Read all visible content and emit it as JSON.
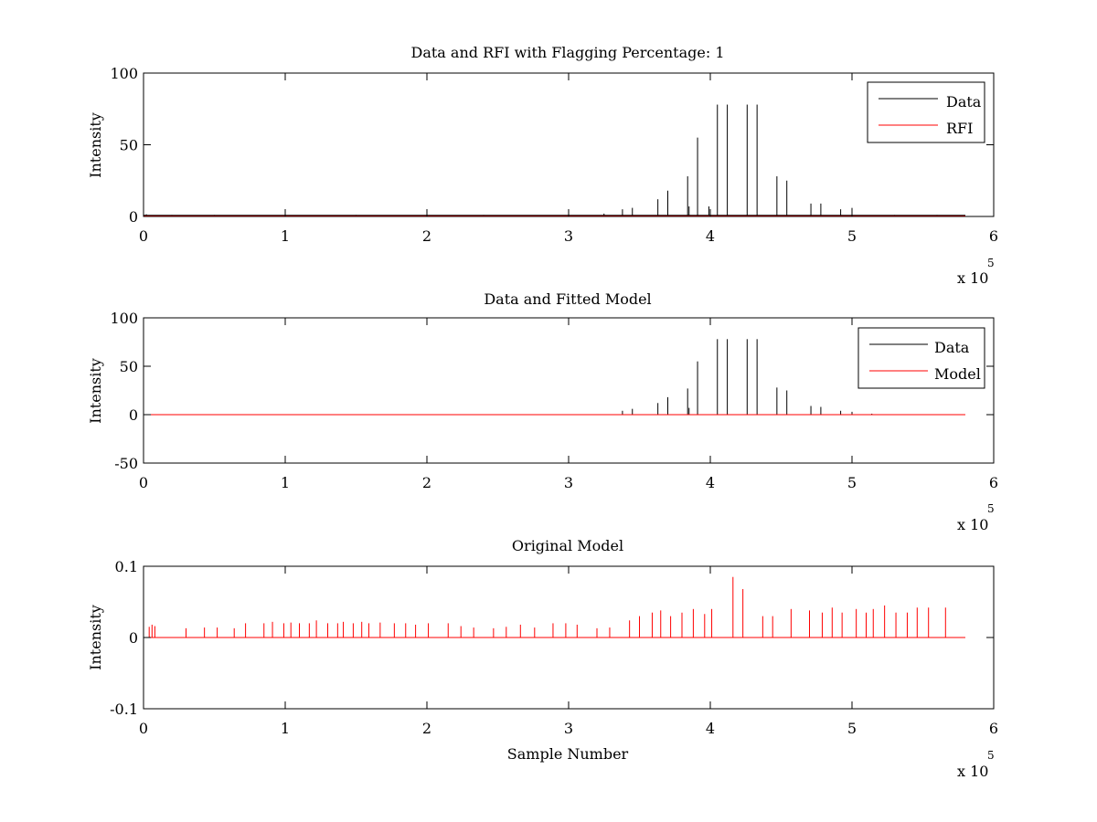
{
  "chart_data": [
    {
      "type": "line",
      "title": "Data and RFI with Flagging Percentage: 1",
      "xlabel": "",
      "ylabel": "Intensity",
      "xlim": [
        0,
        6
      ],
      "ylim": [
        0,
        100
      ],
      "x_ticks": [
        "0",
        "1",
        "2",
        "3",
        "4",
        "5",
        "6"
      ],
      "y_ticks": [
        "0",
        "50",
        "100"
      ],
      "x_multiplier": "x 10",
      "x_exponent": "5",
      "legend": "top-right",
      "series": [
        {
          "name": "Data",
          "color": "#000000",
          "baseline": 0.8,
          "spikes": [
            [
              0.02,
              1.5
            ],
            [
              0.2,
              1
            ],
            [
              0.5,
              1
            ],
            [
              1,
              5
            ],
            [
              1.5,
              1
            ],
            [
              2.4,
              1
            ],
            [
              3,
              5
            ],
            [
              3.25,
              2
            ],
            [
              3.38,
              5
            ],
            [
              3.45,
              6
            ],
            [
              3.63,
              12
            ],
            [
              3.7,
              18
            ],
            [
              3.84,
              28
            ],
            [
              3.85,
              7
            ],
            [
              3.91,
              55
            ],
            [
              3.99,
              7
            ],
            [
              4.05,
              78
            ],
            [
              4.12,
              78
            ],
            [
              4.26,
              78
            ],
            [
              4.33,
              78
            ],
            [
              4.47,
              28
            ],
            [
              4.54,
              25
            ],
            [
              4.71,
              9
            ],
            [
              4.78,
              9
            ],
            [
              4.92,
              5
            ],
            [
              5.0,
              6
            ],
            [
              5.3,
              1
            ],
            [
              5.6,
              1
            ]
          ]
        },
        {
          "name": "RFI",
          "color": "#ff0000",
          "baseline": 0.3,
          "spikes": []
        }
      ]
    },
    {
      "type": "line",
      "title": "Data and Fitted Model",
      "xlabel": "",
      "ylabel": "Intensity",
      "xlim": [
        0,
        6
      ],
      "ylim": [
        -50,
        100
      ],
      "x_ticks": [
        "0",
        "1",
        "2",
        "3",
        "4",
        "5",
        "6"
      ],
      "y_ticks": [
        "-50",
        "0",
        "50",
        "100"
      ],
      "x_multiplier": "x 10",
      "x_exponent": "5",
      "legend": "top-right",
      "series": [
        {
          "name": "Data",
          "color": "#000000",
          "baseline": 0,
          "spikes": [
            [
              3.38,
              4
            ],
            [
              3.45,
              6
            ],
            [
              3.63,
              12
            ],
            [
              3.7,
              18
            ],
            [
              3.84,
              27
            ],
            [
              3.85,
              7
            ],
            [
              3.91,
              55
            ],
            [
              4.05,
              78
            ],
            [
              4.12,
              78
            ],
            [
              4.26,
              78
            ],
            [
              4.33,
              78
            ],
            [
              4.47,
              28
            ],
            [
              4.54,
              25
            ],
            [
              4.71,
              9
            ],
            [
              4.78,
              8
            ],
            [
              4.92,
              4
            ],
            [
              5.0,
              3
            ],
            [
              5.14,
              1
            ]
          ]
        },
        {
          "name": "Model",
          "color": "#ff0000",
          "baseline": 0,
          "spikes": []
        }
      ]
    },
    {
      "type": "line",
      "title": "Original Model",
      "xlabel": "Sample Number",
      "ylabel": "Intensity",
      "xlim": [
        0,
        6
      ],
      "ylim": [
        -0.1,
        0.1
      ],
      "x_ticks": [
        "0",
        "1",
        "2",
        "3",
        "4",
        "5",
        "6"
      ],
      "y_ticks": [
        "-0.1",
        "0",
        "0.1"
      ],
      "x_multiplier": "x 10",
      "x_exponent": "5",
      "legend": "none",
      "series": [
        {
          "color": "#ff0000",
          "baseline": 0,
          "spikes": [
            [
              0.04,
              0.015
            ],
            [
              0.06,
              0.018
            ],
            [
              0.08,
              0.016
            ],
            [
              0.3,
              0.013
            ],
            [
              0.43,
              0.014
            ],
            [
              0.52,
              0.014
            ],
            [
              0.64,
              0.013
            ],
            [
              0.72,
              0.02
            ],
            [
              0.85,
              0.02
            ],
            [
              0.91,
              0.022
            ],
            [
              0.99,
              0.02
            ],
            [
              1.04,
              0.021
            ],
            [
              1.1,
              0.02
            ],
            [
              1.17,
              0.02
            ],
            [
              1.22,
              0.024
            ],
            [
              1.3,
              0.02
            ],
            [
              1.37,
              0.02
            ],
            [
              1.41,
              0.022
            ],
            [
              1.48,
              0.02
            ],
            [
              1.54,
              0.022
            ],
            [
              1.59,
              0.02
            ],
            [
              1.67,
              0.021
            ],
            [
              1.77,
              0.02
            ],
            [
              1.85,
              0.02
            ],
            [
              1.92,
              0.018
            ],
            [
              2.01,
              0.02
            ],
            [
              2.15,
              0.02
            ],
            [
              2.24,
              0.016
            ],
            [
              2.33,
              0.014
            ],
            [
              2.47,
              0.013
            ],
            [
              2.56,
              0.015
            ],
            [
              2.66,
              0.018
            ],
            [
              2.76,
              0.014
            ],
            [
              2.89,
              0.02
            ],
            [
              2.98,
              0.02
            ],
            [
              3.06,
              0.018
            ],
            [
              3.2,
              0.013
            ],
            [
              3.29,
              0.014
            ],
            [
              3.43,
              0.024
            ],
            [
              3.5,
              0.03
            ],
            [
              3.59,
              0.035
            ],
            [
              3.65,
              0.038
            ],
            [
              3.72,
              0.03
            ],
            [
              3.8,
              0.035
            ],
            [
              3.88,
              0.04
            ],
            [
              3.96,
              0.033
            ],
            [
              4.01,
              0.04
            ],
            [
              4.16,
              0.085
            ],
            [
              4.23,
              0.068
            ],
            [
              4.37,
              0.03
            ],
            [
              4.44,
              0.03
            ],
            [
              4.57,
              0.04
            ],
            [
              4.7,
              0.038
            ],
            [
              4.79,
              0.035
            ],
            [
              4.86,
              0.042
            ],
            [
              4.93,
              0.035
            ],
            [
              5.03,
              0.04
            ],
            [
              5.1,
              0.035
            ],
            [
              5.15,
              0.04
            ],
            [
              5.23,
              0.045
            ],
            [
              5.31,
              0.035
            ],
            [
              5.39,
              0.035
            ],
            [
              5.46,
              0.042
            ],
            [
              5.54,
              0.042
            ],
            [
              5.66,
              0.042
            ]
          ]
        }
      ]
    }
  ]
}
